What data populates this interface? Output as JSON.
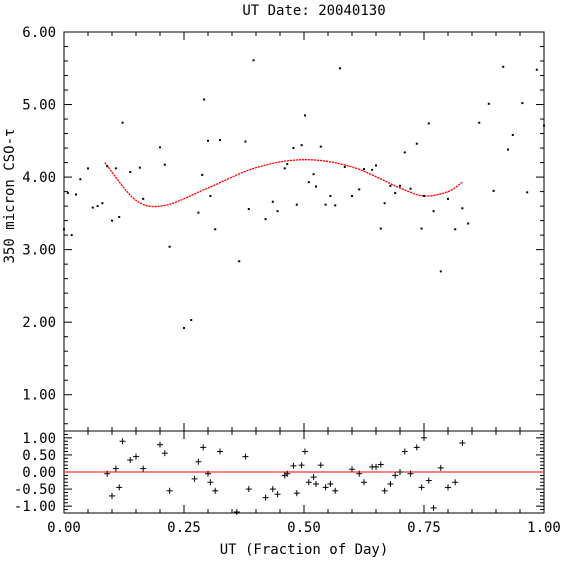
{
  "chart_data": [
    {
      "type": "scatter",
      "title": "UT Date: 20040130",
      "ylabel": "350 micron CSO-τ",
      "xlim": [
        0.0,
        1.0
      ],
      "ylim": [
        0.5,
        6.0
      ],
      "yticks": [
        "1.00",
        "2.00",
        "3.00",
        "4.00",
        "5.00",
        "6.00"
      ],
      "grid": false,
      "colors": {
        "points": "#000000",
        "fit": "#ff0000"
      },
      "series": [
        {
          "kind": "points",
          "x": [
            0.0,
            0.008,
            0.016,
            0.025,
            0.034,
            0.05,
            0.06,
            0.07,
            0.08,
            0.09,
            0.1,
            0.108,
            0.115,
            0.122,
            0.138,
            0.158,
            0.165,
            0.2,
            0.21,
            0.22,
            0.25,
            0.265,
            0.28,
            0.288,
            0.292,
            0.3,
            0.305,
            0.315,
            0.325,
            0.365,
            0.378,
            0.385,
            0.395,
            0.42,
            0.435,
            0.445,
            0.46,
            0.465,
            0.478,
            0.485,
            0.495,
            0.502,
            0.51,
            0.52,
            0.525,
            0.535,
            0.545,
            0.555,
            0.565,
            0.575,
            0.585,
            0.6,
            0.615,
            0.625,
            0.642,
            0.65,
            0.66,
            0.668,
            0.68,
            0.69,
            0.7,
            0.71,
            0.722,
            0.735,
            0.745,
            0.75,
            0.76,
            0.77,
            0.785,
            0.8,
            0.815,
            0.83,
            0.842,
            0.865,
            0.885,
            0.895,
            0.915,
            0.925,
            0.935,
            0.955,
            0.965,
            0.985,
            1.0
          ],
          "y": [
            3.28,
            3.78,
            3.2,
            3.76,
            3.97,
            4.12,
            3.58,
            3.6,
            3.64,
            4.15,
            3.4,
            4.12,
            3.45,
            4.75,
            4.07,
            4.13,
            3.7,
            4.41,
            4.17,
            3.04,
            1.92,
            2.03,
            3.51,
            4.03,
            5.07,
            4.5,
            3.74,
            3.28,
            4.51,
            2.84,
            4.49,
            3.56,
            5.61,
            3.42,
            3.66,
            3.53,
            4.12,
            4.18,
            4.4,
            3.62,
            4.44,
            4.85,
            3.93,
            4.04,
            3.87,
            4.42,
            3.62,
            3.74,
            3.61,
            5.5,
            4.14,
            3.74,
            3.83,
            4.11,
            4.1,
            4.16,
            3.29,
            3.64,
            3.88,
            3.78,
            3.88,
            4.34,
            3.84,
            4.46,
            3.29,
            3.74,
            4.74,
            3.53,
            2.7,
            3.7,
            3.28,
            3.57,
            3.36,
            4.75,
            5.01,
            3.81,
            5.52,
            4.38,
            4.58,
            5.02,
            3.79,
            5.48,
            4.71
          ]
        },
        {
          "kind": "fit",
          "x": [
            0.085,
            0.15,
            0.21,
            0.3,
            0.4,
            0.5,
            0.6,
            0.7,
            0.75,
            0.8,
            0.83
          ],
          "y": [
            4.2,
            3.68,
            3.61,
            3.85,
            4.13,
            4.24,
            4.14,
            3.85,
            3.74,
            3.8,
            3.93
          ]
        }
      ]
    },
    {
      "type": "scatter",
      "title": "",
      "xlabel": "UT (Fraction of Day)",
      "ylabel": "",
      "xlim": [
        0.0,
        1.0
      ],
      "ylim": [
        -1.2,
        1.2
      ],
      "xticks": [
        "0.00",
        "0.25",
        "0.50",
        "0.75",
        "1.00"
      ],
      "yticks": [
        "-1.00",
        "-0.50",
        "0.00",
        "0.50",
        "1.00"
      ],
      "grid": false,
      "colors": {
        "points": "#000000",
        "zero_line": "#ff0000"
      },
      "series": [
        {
          "kind": "residuals",
          "x": [
            0.09,
            0.1,
            0.108,
            0.115,
            0.122,
            0.138,
            0.15,
            0.165,
            0.2,
            0.21,
            0.22,
            0.272,
            0.28,
            0.29,
            0.3,
            0.305,
            0.315,
            0.325,
            0.36,
            0.378,
            0.385,
            0.42,
            0.435,
            0.445,
            0.46,
            0.465,
            0.478,
            0.485,
            0.495,
            0.502,
            0.51,
            0.52,
            0.525,
            0.535,
            0.545,
            0.555,
            0.565,
            0.6,
            0.615,
            0.625,
            0.642,
            0.65,
            0.66,
            0.668,
            0.68,
            0.69,
            0.7,
            0.71,
            0.722,
            0.735,
            0.745,
            0.75,
            0.76,
            0.77,
            0.785,
            0.8,
            0.815,
            0.83
          ],
          "y": [
            -0.05,
            -0.7,
            0.1,
            -0.45,
            0.9,
            0.35,
            0.45,
            0.1,
            0.8,
            0.55,
            -0.55,
            -0.2,
            0.3,
            0.72,
            -0.05,
            -0.3,
            -0.55,
            0.6,
            -1.17,
            0.45,
            -0.5,
            -0.75,
            -0.5,
            -0.65,
            -0.1,
            -0.05,
            0.18,
            -0.62,
            0.2,
            0.6,
            -0.3,
            -0.15,
            -0.35,
            0.2,
            -0.45,
            -0.35,
            -0.55,
            0.08,
            -0.05,
            -0.3,
            0.15,
            0.15,
            0.22,
            -0.55,
            -0.35,
            -0.1,
            0.0,
            0.6,
            -0.05,
            0.72,
            -0.45,
            1.0,
            -0.25,
            -1.05,
            0.12,
            -0.45,
            -0.3,
            0.85
          ]
        }
      ]
    }
  ]
}
